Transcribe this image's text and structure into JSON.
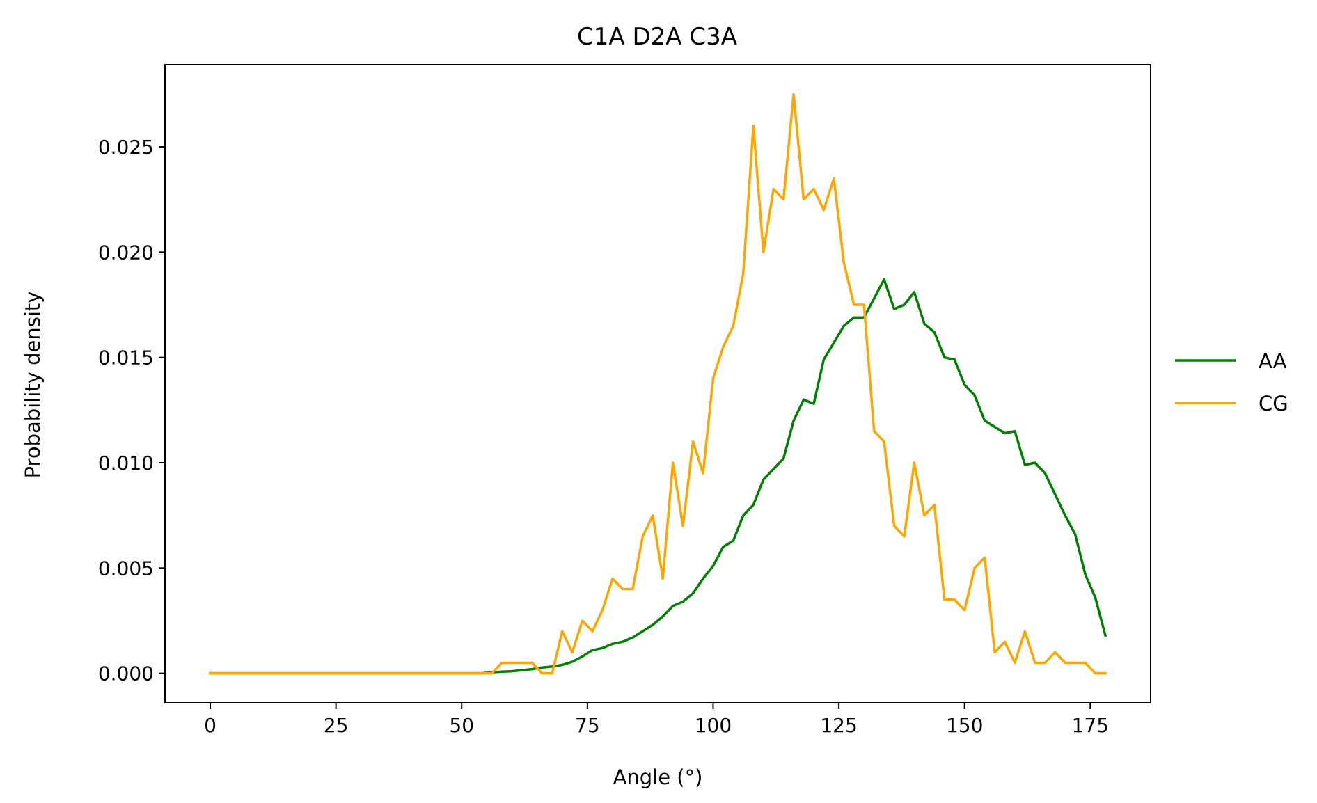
{
  "chart_data": {
    "type": "line",
    "title": "C1A D2A C3A",
    "xlabel": "Angle (°)",
    "ylabel": "Probability density",
    "xlim": [
      -9,
      187
    ],
    "ylim": [
      -0.0014,
      0.0289
    ],
    "xticks": [
      0,
      25,
      50,
      75,
      100,
      125,
      150,
      175
    ],
    "xtick_labels": [
      "0",
      "25",
      "50",
      "75",
      "100",
      "125",
      "150",
      "175"
    ],
    "yticks": [
      0.0,
      0.005,
      0.01,
      0.015,
      0.02,
      0.025
    ],
    "ytick_labels": [
      "0.000",
      "0.005",
      "0.010",
      "0.015",
      "0.020",
      "0.025"
    ],
    "grid": false,
    "legend_position": "center-right-outside",
    "series": [
      {
        "name": "AA",
        "color": "#008000",
        "x": [
          0,
          2,
          4,
          6,
          8,
          10,
          12,
          14,
          16,
          18,
          20,
          22,
          24,
          26,
          28,
          30,
          32,
          34,
          36,
          38,
          40,
          42,
          44,
          46,
          48,
          50,
          52,
          54,
          56,
          58,
          60,
          62,
          64,
          66,
          68,
          70,
          72,
          74,
          76,
          78,
          80,
          82,
          84,
          86,
          88,
          90,
          92,
          94,
          96,
          98,
          100,
          102,
          104,
          106,
          108,
          110,
          112,
          114,
          116,
          118,
          120,
          122,
          124,
          126,
          128,
          130,
          132,
          134,
          136,
          138,
          140,
          142,
          144,
          146,
          148,
          150,
          152,
          154,
          156,
          158,
          160,
          162,
          164,
          166,
          168,
          170,
          172,
          174,
          176,
          178
        ],
        "y": [
          0,
          0,
          0,
          0,
          0,
          0,
          0,
          0,
          0,
          0,
          0,
          0,
          0,
          0,
          0,
          0,
          0,
          0,
          0,
          0,
          0,
          0,
          0,
          0,
          0,
          0,
          0,
          0,
          5e-05,
          8e-05,
          0.0001,
          0.00015,
          0.0002,
          0.00028,
          0.00032,
          0.0004,
          0.00055,
          0.0008,
          0.0011,
          0.0012,
          0.0014,
          0.0015,
          0.0017,
          0.002,
          0.0023,
          0.0027,
          0.0032,
          0.0034,
          0.0038,
          0.0045,
          0.0051,
          0.006,
          0.0063,
          0.0075,
          0.008,
          0.0092,
          0.0097,
          0.0102,
          0.012,
          0.013,
          0.0128,
          0.0149,
          0.0157,
          0.0165,
          0.0169,
          0.0169,
          0.0178,
          0.0187,
          0.0173,
          0.0175,
          0.0181,
          0.0166,
          0.0162,
          0.015,
          0.0149,
          0.0137,
          0.0132,
          0.012,
          0.0117,
          0.0114,
          0.0115,
          0.0099,
          0.01,
          0.0095,
          0.0085,
          0.0075,
          0.0066,
          0.0047,
          0.0036,
          0.0018
        ]
      },
      {
        "name": "CG",
        "color": "#ffa500",
        "x": [
          0,
          2,
          4,
          6,
          8,
          10,
          12,
          14,
          16,
          18,
          20,
          22,
          24,
          26,
          28,
          30,
          32,
          34,
          36,
          38,
          40,
          42,
          44,
          46,
          48,
          50,
          52,
          54,
          56,
          58,
          60,
          62,
          64,
          66,
          68,
          70,
          72,
          74,
          76,
          78,
          80,
          82,
          84,
          86,
          88,
          90,
          92,
          94,
          96,
          98,
          100,
          102,
          104,
          106,
          108,
          110,
          112,
          114,
          116,
          118,
          120,
          122,
          124,
          126,
          128,
          130,
          132,
          134,
          136,
          138,
          140,
          142,
          144,
          146,
          148,
          150,
          152,
          154,
          156,
          158,
          160,
          162,
          164,
          166,
          168,
          170,
          172,
          174,
          176,
          178
        ],
        "y": [
          0,
          0,
          0,
          0,
          0,
          0,
          0,
          0,
          0,
          0,
          0,
          0,
          0,
          0,
          0,
          0,
          0,
          0,
          0,
          0,
          0,
          0,
          0,
          0,
          0,
          0,
          0,
          0,
          0,
          0.0005,
          0.0005,
          0.0005,
          0.0005,
          0,
          0,
          0.002,
          0.001,
          0.0025,
          0.002,
          0.003,
          0.0045,
          0.004,
          0.004,
          0.0065,
          0.0075,
          0.0045,
          0.01,
          0.007,
          0.011,
          0.0095,
          0.014,
          0.0155,
          0.0165,
          0.019,
          0.026,
          0.02,
          0.023,
          0.0225,
          0.0275,
          0.0225,
          0.023,
          0.022,
          0.0235,
          0.0195,
          0.0175,
          0.0175,
          0.0115,
          0.011,
          0.007,
          0.0065,
          0.01,
          0.0075,
          0.008,
          0.0035,
          0.0035,
          0.003,
          0.005,
          0.0055,
          0.001,
          0.0015,
          0.0005,
          0.002,
          0.0005,
          0.0005,
          0.001,
          0.0005,
          0.0005,
          0.0005,
          0,
          0
        ]
      }
    ]
  }
}
